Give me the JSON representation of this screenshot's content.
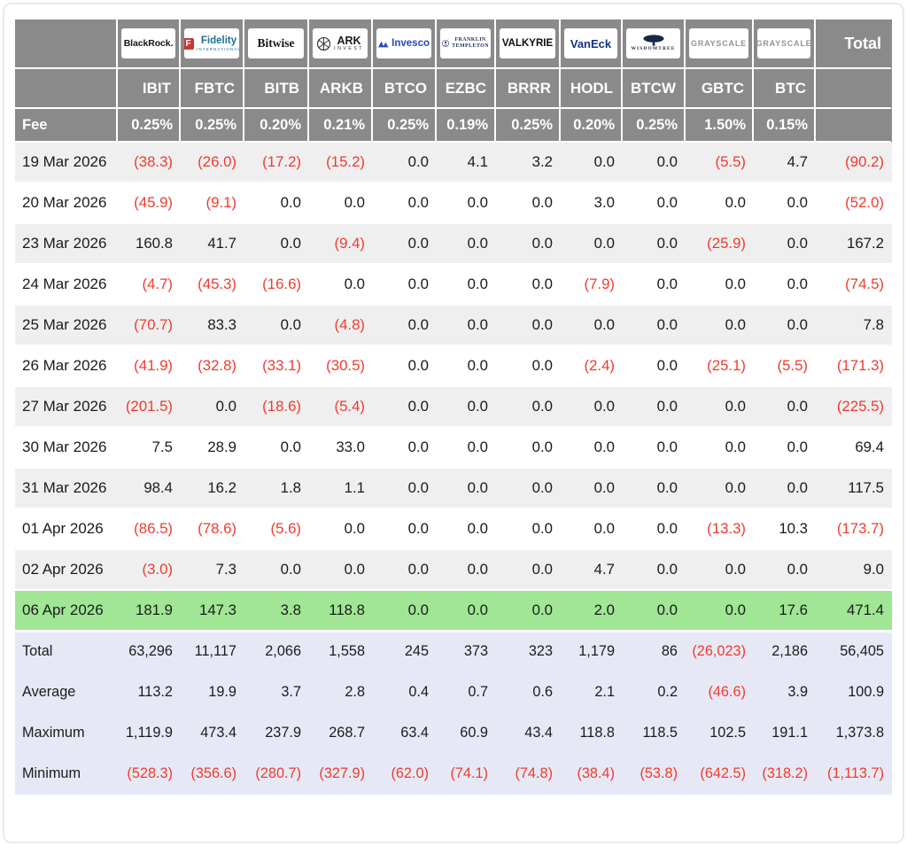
{
  "colors": {
    "header_background": "#8a8a8a",
    "header_text": "#ffffff",
    "row_alt_background": "#efefef",
    "highlight_row_background": "#a0e695",
    "summary_background": "#e6e9f5",
    "negative_value": "#f23a2e",
    "body_text": "#1b1b1d"
  },
  "table": {
    "fee_label": "Fee",
    "total_label": "Total",
    "columns": [
      {
        "provider": "BlackRock",
        "logo": "blackrock",
        "logo_text": "BlackRock.",
        "ticker": "IBIT",
        "fee": "0.25%"
      },
      {
        "provider": "Fidelity International",
        "logo": "fidelity",
        "logo_icon_letter": "F",
        "logo_text": "Fidelity",
        "logo_subtext": "INTERNATIONAL",
        "ticker": "FBTC",
        "fee": "0.25%"
      },
      {
        "provider": "Bitwise",
        "logo": "bitwise",
        "logo_text": "Bitwise",
        "ticker": "BITB",
        "fee": "0.20%"
      },
      {
        "provider": "ARK Invest",
        "logo": "ark",
        "logo_text": "ARK",
        "logo_subtext": "INVEST",
        "ticker": "ARKB",
        "fee": "0.21%"
      },
      {
        "provider": "Invesco",
        "logo": "invesco",
        "logo_text": "Invesco",
        "ticker": "BTCO",
        "fee": "0.25%"
      },
      {
        "provider": "Franklin Templeton",
        "logo": "franklin",
        "logo_text": "FRANKLIN",
        "logo_subtext": "TEMPLETON",
        "ticker": "EZBC",
        "fee": "0.19%"
      },
      {
        "provider": "Valkyrie",
        "logo": "valkyrie",
        "logo_text": "VALKYRIE",
        "ticker": "BRRR",
        "fee": "0.25%"
      },
      {
        "provider": "VanEck",
        "logo": "vaneck",
        "logo_text": "VanEck",
        "ticker": "HODL",
        "fee": "0.20%"
      },
      {
        "provider": "WisdomTree",
        "logo": "wisdomtree",
        "logo_text": "WISDOMTREE",
        "ticker": "BTCW",
        "fee": "0.25%"
      },
      {
        "provider": "Grayscale",
        "logo": "grayscale",
        "logo_text": "GRAYSCALE",
        "ticker": "GBTC",
        "fee": "1.50%"
      },
      {
        "provider": "Grayscale",
        "logo": "grayscale",
        "logo_text": "GRAYSCALE",
        "ticker": "BTC",
        "fee": "0.15%"
      }
    ],
    "rows": [
      {
        "date": "19 Mar 2026",
        "values": [
          "(38.3)",
          "(26.0)",
          "(17.2)",
          "(15.2)",
          "0.0",
          "4.1",
          "3.2",
          "0.0",
          "0.0",
          "(5.5)",
          "4.7"
        ],
        "total": "(90.2)",
        "highlight": false
      },
      {
        "date": "20 Mar 2026",
        "values": [
          "(45.9)",
          "(9.1)",
          "0.0",
          "0.0",
          "0.0",
          "0.0",
          "0.0",
          "3.0",
          "0.0",
          "0.0",
          "0.0"
        ],
        "total": "(52.0)",
        "highlight": false
      },
      {
        "date": "23 Mar 2026",
        "values": [
          "160.8",
          "41.7",
          "0.0",
          "(9.4)",
          "0.0",
          "0.0",
          "0.0",
          "0.0",
          "0.0",
          "(25.9)",
          "0.0"
        ],
        "total": "167.2",
        "highlight": false
      },
      {
        "date": "24 Mar 2026",
        "values": [
          "(4.7)",
          "(45.3)",
          "(16.6)",
          "0.0",
          "0.0",
          "0.0",
          "0.0",
          "(7.9)",
          "0.0",
          "0.0",
          "0.0"
        ],
        "total": "(74.5)",
        "highlight": false
      },
      {
        "date": "25 Mar 2026",
        "values": [
          "(70.7)",
          "83.3",
          "0.0",
          "(4.8)",
          "0.0",
          "0.0",
          "0.0",
          "0.0",
          "0.0",
          "0.0",
          "0.0"
        ],
        "total": "7.8",
        "highlight": false
      },
      {
        "date": "26 Mar 2026",
        "values": [
          "(41.9)",
          "(32.8)",
          "(33.1)",
          "(30.5)",
          "0.0",
          "0.0",
          "0.0",
          "(2.4)",
          "0.0",
          "(25.1)",
          "(5.5)"
        ],
        "total": "(171.3)",
        "highlight": false
      },
      {
        "date": "27 Mar 2026",
        "values": [
          "(201.5)",
          "0.0",
          "(18.6)",
          "(5.4)",
          "0.0",
          "0.0",
          "0.0",
          "0.0",
          "0.0",
          "0.0",
          "0.0"
        ],
        "total": "(225.5)",
        "highlight": false
      },
      {
        "date": "30 Mar 2026",
        "values": [
          "7.5",
          "28.9",
          "0.0",
          "33.0",
          "0.0",
          "0.0",
          "0.0",
          "0.0",
          "0.0",
          "0.0",
          "0.0"
        ],
        "total": "69.4",
        "highlight": false
      },
      {
        "date": "31 Mar 2026",
        "values": [
          "98.4",
          "16.2",
          "1.8",
          "1.1",
          "0.0",
          "0.0",
          "0.0",
          "0.0",
          "0.0",
          "0.0",
          "0.0"
        ],
        "total": "117.5",
        "highlight": false
      },
      {
        "date": "01 Apr 2026",
        "values": [
          "(86.5)",
          "(78.6)",
          "(5.6)",
          "0.0",
          "0.0",
          "0.0",
          "0.0",
          "0.0",
          "0.0",
          "(13.3)",
          "10.3"
        ],
        "total": "(173.7)",
        "highlight": false
      },
      {
        "date": "02 Apr 2026",
        "values": [
          "(3.0)",
          "7.3",
          "0.0",
          "0.0",
          "0.0",
          "0.0",
          "0.0",
          "4.7",
          "0.0",
          "0.0",
          "0.0"
        ],
        "total": "9.0",
        "highlight": false
      },
      {
        "date": "06 Apr 2026",
        "values": [
          "181.9",
          "147.3",
          "3.8",
          "118.8",
          "0.0",
          "0.0",
          "0.0",
          "2.0",
          "0.0",
          "0.0",
          "17.6"
        ],
        "total": "471.4",
        "highlight": true
      }
    ],
    "summary": [
      {
        "label": "Total",
        "values": [
          "63,296",
          "11,117",
          "2,066",
          "1,558",
          "245",
          "373",
          "323",
          "1,179",
          "86",
          "(26,023)",
          "2,186"
        ],
        "total": "56,405"
      },
      {
        "label": "Average",
        "values": [
          "113.2",
          "19.9",
          "3.7",
          "2.8",
          "0.4",
          "0.7",
          "0.6",
          "2.1",
          "0.2",
          "(46.6)",
          "3.9"
        ],
        "total": "100.9"
      },
      {
        "label": "Maximum",
        "values": [
          "1,119.9",
          "473.4",
          "237.9",
          "268.7",
          "63.4",
          "60.9",
          "43.4",
          "118.8",
          "118.5",
          "102.5",
          "191.1"
        ],
        "total": "1,373.8"
      },
      {
        "label": "Minimum",
        "values": [
          "(528.3)",
          "(356.6)",
          "(280.7)",
          "(327.9)",
          "(62.0)",
          "(74.1)",
          "(74.8)",
          "(38.4)",
          "(53.8)",
          "(642.5)",
          "(318.2)"
        ],
        "total": "(1,113.7)"
      }
    ]
  }
}
